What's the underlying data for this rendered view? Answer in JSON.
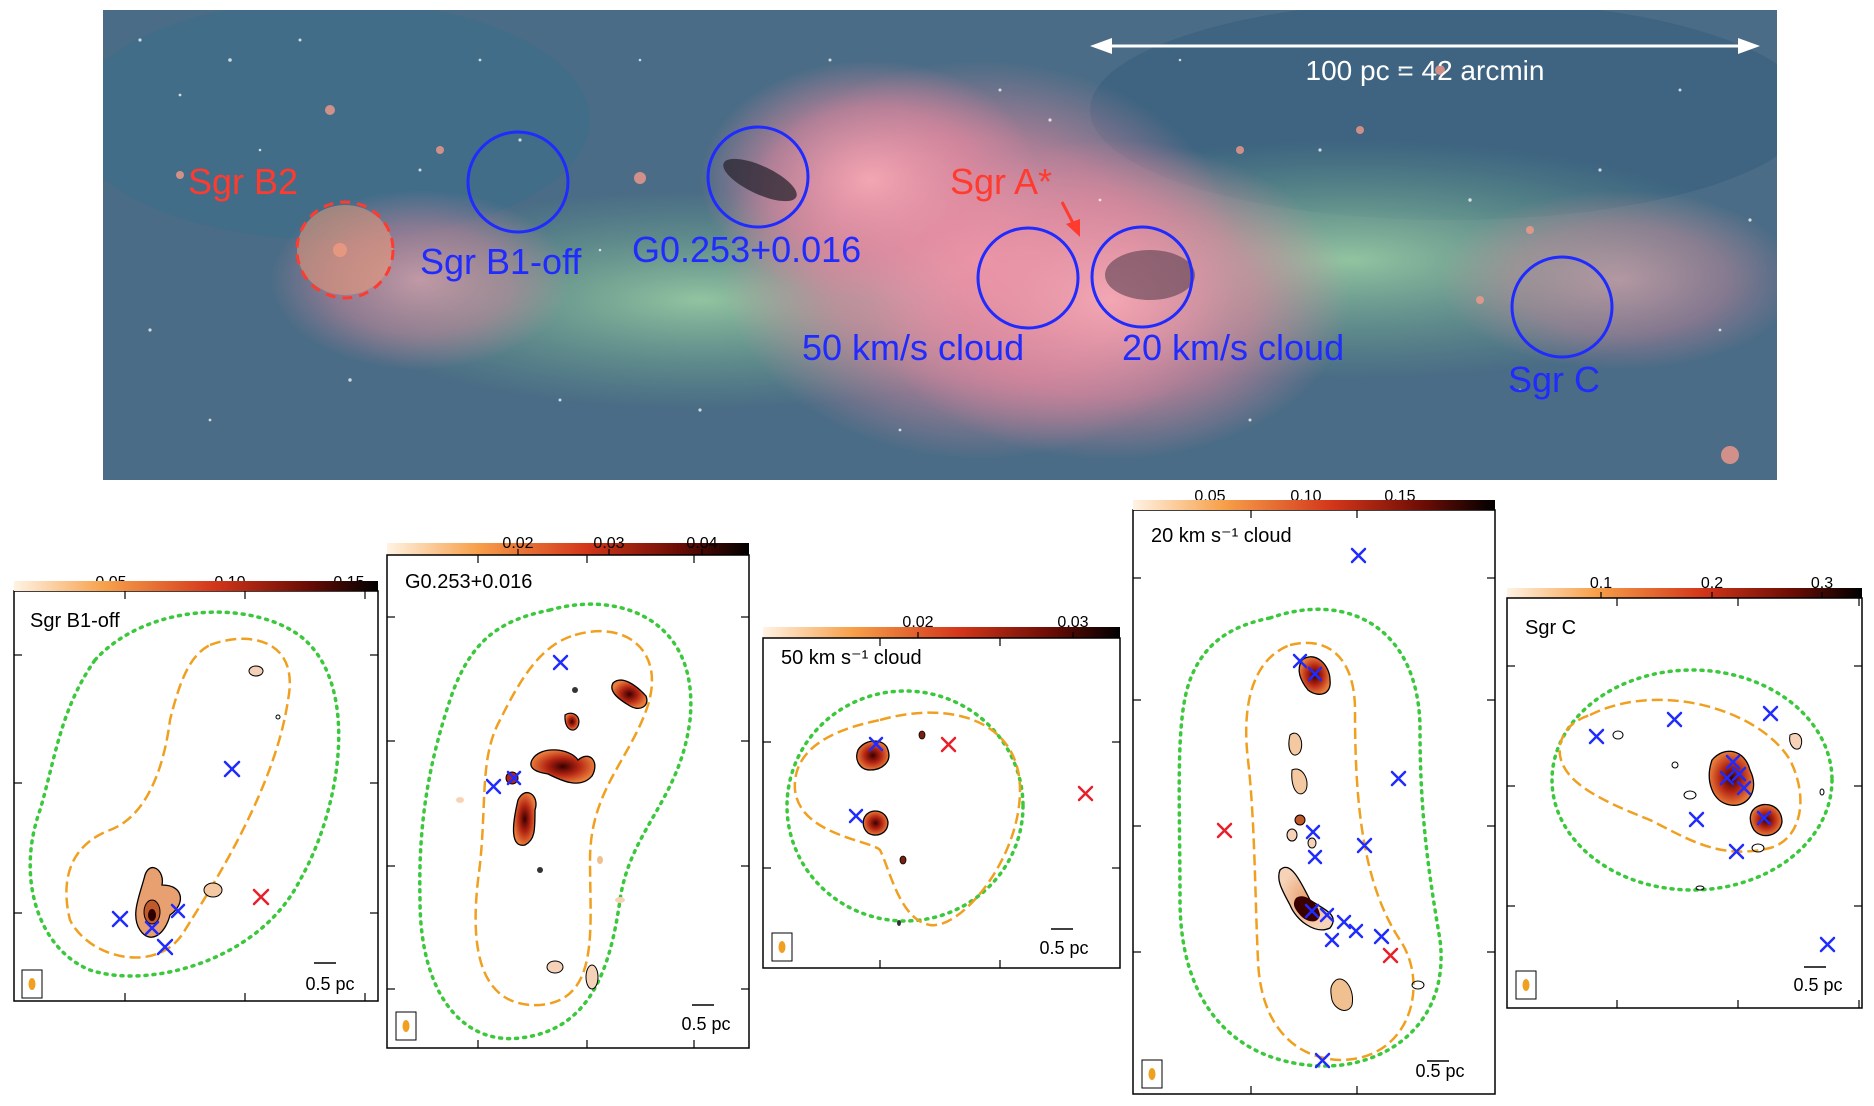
{
  "overview": {
    "scale_label": "100 pc = 42 arcmin",
    "targets": [
      {
        "key": "sgrb2",
        "label": "Sgr B2",
        "color": "#ff3b2f"
      },
      {
        "key": "sgrb1off",
        "label": "Sgr B1-off",
        "color": "#1f2bff"
      },
      {
        "key": "g0253",
        "label": "G0.253+0.016",
        "color": "#1f2bff"
      },
      {
        "key": "sgra",
        "label": "Sgr A*",
        "color": "#ff3b2f"
      },
      {
        "key": "c50",
        "label": "50 km/s cloud",
        "color": "#1f2bff"
      },
      {
        "key": "c20",
        "label": "20 km/s cloud",
        "color": "#1f2bff"
      },
      {
        "key": "sgrc",
        "label": "Sgr C",
        "color": "#1f2bff"
      }
    ]
  },
  "panels": [
    {
      "name": "Sgr B1-off",
      "ticks": [
        "0.05",
        "0.10",
        "0.15"
      ],
      "scalebar": "0.5 pc"
    },
    {
      "name": "G0.253+0.016",
      "ticks": [
        "0.02",
        "0.03",
        "0.04"
      ],
      "scalebar": "0.5 pc"
    },
    {
      "name": "50 km s⁻¹ cloud",
      "ticks": [
        "0.02",
        "0.03"
      ],
      "scalebar": "0.5 pc"
    },
    {
      "name": "20 km s⁻¹ cloud",
      "ticks": [
        "0.05",
        "0.10",
        "0.15"
      ],
      "scalebar": "0.5 pc"
    },
    {
      "name": "Sgr C",
      "ticks": [
        "0.1",
        "0.2",
        "0.3"
      ],
      "scalebar": "0.5 pc"
    }
  ],
  "colors": {
    "target_circle": "#1f2bff",
    "sgr_label": "#ff3b2f",
    "blue_marker": "#1f2bff",
    "red_marker": "#e8202a",
    "orange_contour": "#f0a020",
    "green_contour": "#3cc83c"
  }
}
